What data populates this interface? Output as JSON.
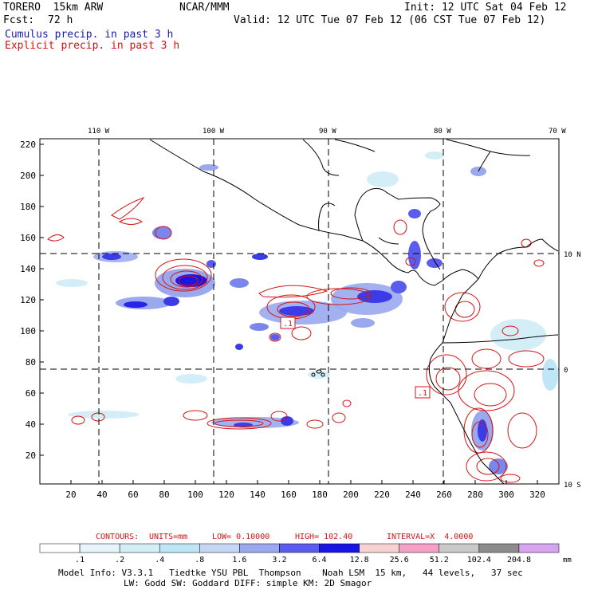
{
  "header": {
    "model": "TORERO  15km ARW",
    "org": "NCAR/MMM",
    "init": "Init: 12 UTC Sat 04 Feb 12",
    "fcst_label": "Fcst:",
    "fcst_value": "72 h",
    "valid": "Valid: 12 UTC Tue 07 Feb 12 (06 CST Tue 07 Feb 12)",
    "line_cumulus": "Cumulus precip. in past 3 h",
    "line_explicit": "Explicit precip. in past 3 h"
  },
  "colors": {
    "cumulus": "#1a1aa6",
    "explicit": "#d41414",
    "coast": "#000000"
  },
  "map": {
    "lon_labels": [
      "110 W",
      "100 W",
      "90 W",
      "80 W",
      "70 W"
    ],
    "lat_labels": [
      "10 N",
      "0",
      "10 S"
    ],
    "y_ticks": [
      "20",
      "40",
      "60",
      "80",
      "100",
      "120",
      "140",
      "160",
      "180",
      "200",
      "220"
    ],
    "x_ticks": [
      "20",
      "40",
      "60",
      "80",
      "100",
      "120",
      "140",
      "160",
      "180",
      "200",
      "220",
      "240",
      "260",
      "280",
      "300",
      "320"
    ],
    "high_labels": [
      ".1",
      ".1"
    ]
  },
  "contours": {
    "label": "CONTOURS:",
    "units": "UNITS=mm",
    "low": "LOW= 0.10000",
    "high": "HIGH= 102.40",
    "interval": "INTERVAL=X  4.0000"
  },
  "colorbar": {
    "unit": "mm",
    "labels": [
      ".1",
      ".2",
      ".4",
      ".8",
      "1.6",
      "3.2",
      "6.4",
      "12.8",
      "25.6",
      "51.2",
      "102.4",
      "204.8"
    ],
    "colors": [
      "#ffffff",
      "#e8f4fb",
      "#d4eef8",
      "#bfe6f6",
      "#c8d6f6",
      "#9aa8ee",
      "#5a5cee",
      "#1a14e6",
      "#f7d2d2",
      "#f2a0c6",
      "#c9c9c9",
      "#8c8c8c",
      "#d7a4f0"
    ]
  },
  "footer": {
    "line1": "Model Info: V3.3.1   Tiedtke YSU PBL  Thompson    Noah LSM  15 km,   44 levels,   37 sec",
    "line2": "LW: Godd SW: Goddard DIFF: simple KM: 2D Smagor"
  }
}
